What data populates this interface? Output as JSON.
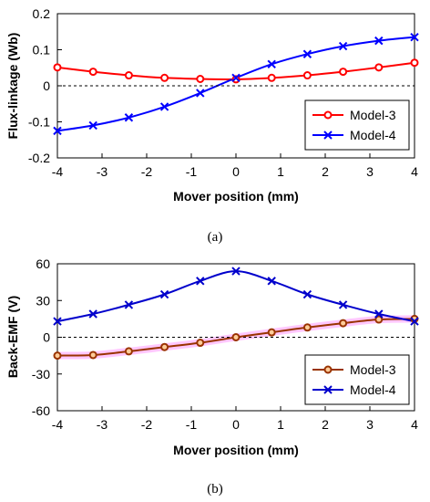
{
  "chart_data": [
    {
      "type": "line",
      "panel_label": "(a)",
      "xlabel": "Mover position (mm)",
      "ylabel": "Flux-linkage (Wb)",
      "xlim": [
        -4,
        4
      ],
      "ylim": [
        -0.2,
        0.2
      ],
      "x_ticks": [
        "-4",
        "-3",
        "-2",
        "-1",
        "0",
        "1",
        "2",
        "3",
        "4"
      ],
      "y_ticks": [
        "-0.2",
        "-0.1",
        "0",
        "0.1",
        "0.2"
      ],
      "x_tick_values": [
        -4,
        -3,
        -2,
        -1,
        0,
        1,
        2,
        3,
        4
      ],
      "y_tick_values": [
        -0.2,
        -0.1,
        0,
        0.1,
        0.2
      ],
      "zero_line": "dashed",
      "grid": false,
      "legend_position": "bottom-right",
      "x": [
        -4,
        -3.2,
        -2.4,
        -1.6,
        -0.8,
        0,
        0.8,
        1.6,
        2.4,
        3.2,
        4
      ],
      "series": [
        {
          "name": "Model-3",
          "color": "#ff0000",
          "marker": "circle",
          "values": [
            0.051,
            0.039,
            0.029,
            0.022,
            0.019,
            0.018,
            0.022,
            0.029,
            0.039,
            0.051,
            0.064
          ]
        },
        {
          "name": "Model-4",
          "color": "#0000ff",
          "marker": "x",
          "values": [
            -0.125,
            -0.11,
            -0.088,
            -0.058,
            -0.02,
            0.022,
            0.06,
            0.088,
            0.11,
            0.125,
            0.135
          ]
        }
      ]
    },
    {
      "type": "line",
      "panel_label": "(b)",
      "xlabel": "Mover position (mm)",
      "ylabel": "Back-EMF (V)",
      "xlim": [
        -4,
        4
      ],
      "ylim": [
        -60,
        60
      ],
      "x_ticks": [
        "-4",
        "-3",
        "-2",
        "-1",
        "0",
        "1",
        "2",
        "3",
        "4"
      ],
      "y_ticks": [
        "-60",
        "-30",
        "0",
        "30",
        "60"
      ],
      "x_tick_values": [
        -4,
        -3,
        -2,
        -1,
        0,
        1,
        2,
        3,
        4
      ],
      "y_tick_values": [
        -60,
        -30,
        0,
        30,
        60
      ],
      "zero_line": "dashed",
      "grid": false,
      "legend_position": "bottom-right",
      "x": [
        -4,
        -3.2,
        -2.4,
        -1.6,
        -0.8,
        0,
        0.8,
        1.6,
        2.4,
        3.2,
        4
      ],
      "series": [
        {
          "name": "Model-3",
          "color": "#993300",
          "marker": "circle",
          "highlight": "#ff99ff",
          "values": [
            -15,
            -14.5,
            -11.5,
            -8,
            -4.5,
            0,
            4,
            8,
            11.5,
            14.5,
            15
          ]
        },
        {
          "name": "Model-4",
          "color": "#0000cc",
          "marker": "x",
          "values": [
            13,
            19,
            26.5,
            35,
            46,
            54,
            46,
            35,
            26.5,
            19,
            13
          ]
        }
      ]
    }
  ]
}
